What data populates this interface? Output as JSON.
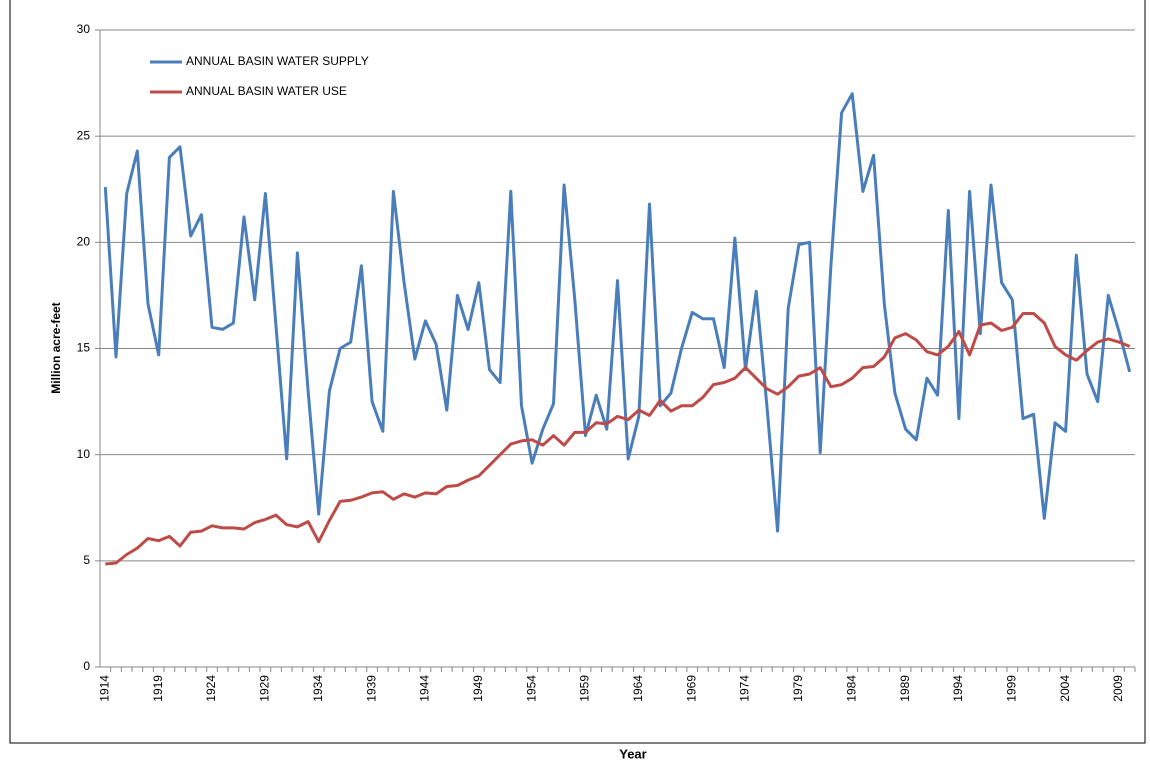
{
  "chart_data": {
    "type": "line",
    "xlabel": "Year",
    "ylabel": "Million acre-feet",
    "x": [
      1914,
      1915,
      1916,
      1917,
      1918,
      1919,
      1920,
      1921,
      1922,
      1923,
      1924,
      1925,
      1926,
      1927,
      1928,
      1929,
      1930,
      1931,
      1932,
      1933,
      1934,
      1935,
      1936,
      1937,
      1938,
      1939,
      1940,
      1941,
      1942,
      1943,
      1944,
      1945,
      1946,
      1947,
      1948,
      1949,
      1950,
      1951,
      1952,
      1953,
      1954,
      1955,
      1956,
      1957,
      1958,
      1959,
      1960,
      1961,
      1962,
      1963,
      1964,
      1965,
      1966,
      1967,
      1968,
      1969,
      1970,
      1971,
      1972,
      1973,
      1974,
      1975,
      1976,
      1977,
      1978,
      1979,
      1980,
      1981,
      1982,
      1983,
      1984,
      1985,
      1986,
      1987,
      1988,
      1989,
      1990,
      1991,
      1992,
      1993,
      1994,
      1995,
      1996,
      1997,
      1998,
      1999,
      2000,
      2001,
      2002,
      2003,
      2004,
      2005,
      2006,
      2007,
      2008,
      2009,
      2010
    ],
    "series": [
      {
        "name": "ANNUAL BASIN WATER SUPPLY",
        "color": "#4a7ebb",
        "values": [
          22.6,
          14.6,
          22.3,
          24.3,
          17.1,
          14.7,
          24.0,
          24.5,
          20.3,
          21.3,
          16.0,
          15.9,
          16.2,
          21.2,
          17.3,
          22.3,
          16.0,
          9.8,
          19.5,
          13.0,
          7.2,
          13.0,
          15.0,
          15.3,
          18.9,
          12.5,
          11.1,
          22.4,
          18.1,
          14.5,
          16.3,
          15.2,
          12.1,
          17.5,
          15.9,
          18.1,
          14.0,
          13.4,
          22.4,
          12.3,
          9.6,
          11.2,
          12.4,
          22.7,
          17.3,
          10.9,
          12.8,
          11.2,
          18.2,
          9.8,
          11.8,
          21.8,
          12.3,
          12.9,
          15.0,
          16.7,
          16.4,
          16.4,
          14.1,
          20.2,
          14.0,
          17.7,
          12.3,
          6.4,
          16.9,
          19.9,
          20.0,
          10.1,
          18.9,
          26.1,
          27.0,
          22.4,
          24.1,
          17.1,
          12.9,
          11.2,
          10.7,
          13.6,
          12.8,
          21.5,
          11.7,
          22.4,
          15.7,
          22.7,
          18.1,
          17.3,
          11.7,
          11.9,
          7.0,
          11.5,
          11.1,
          19.4,
          13.8,
          12.5,
          17.5,
          15.8,
          13.9
        ]
      },
      {
        "name": "ANNUAL BASIN WATER USE",
        "color": "#be4b48",
        "values": [
          4.85,
          4.9,
          5.3,
          5.6,
          6.05,
          5.95,
          6.15,
          5.7,
          6.35,
          6.4,
          6.65,
          6.55,
          6.55,
          6.5,
          6.8,
          6.95,
          7.15,
          6.7,
          6.6,
          6.85,
          5.9,
          6.9,
          7.8,
          7.85,
          8.0,
          8.2,
          8.25,
          7.9,
          8.15,
          8.0,
          8.2,
          8.15,
          8.5,
          8.55,
          8.8,
          9.0,
          9.5,
          10.0,
          10.5,
          10.65,
          10.7,
          10.45,
          10.9,
          10.45,
          11.05,
          11.05,
          11.5,
          11.45,
          11.8,
          11.65,
          12.1,
          11.85,
          12.55,
          12.05,
          12.3,
          12.3,
          12.7,
          13.3,
          13.4,
          13.6,
          14.1,
          13.6,
          13.1,
          12.85,
          13.2,
          13.7,
          13.8,
          14.1,
          13.2,
          13.3,
          13.6,
          14.1,
          14.15,
          14.6,
          15.5,
          15.7,
          15.4,
          14.85,
          14.7,
          15.1,
          15.8,
          14.7,
          16.1,
          16.2,
          15.85,
          16.0,
          16.65,
          16.65,
          16.2,
          15.1,
          14.7,
          14.45,
          14.9,
          15.3,
          15.45,
          15.3,
          15.1
        ]
      }
    ],
    "xlim": [
      1913.5,
      2010.5
    ],
    "xticks": [
      1914,
      1919,
      1924,
      1929,
      1934,
      1939,
      1944,
      1949,
      1954,
      1959,
      1964,
      1969,
      1974,
      1979,
      1984,
      1989,
      1994,
      1999,
      2004,
      2009
    ],
    "ylim": [
      0,
      30
    ],
    "yticks": [
      0,
      5,
      10,
      15,
      20,
      25,
      30
    ],
    "grid": true,
    "legend": "upper left"
  }
}
